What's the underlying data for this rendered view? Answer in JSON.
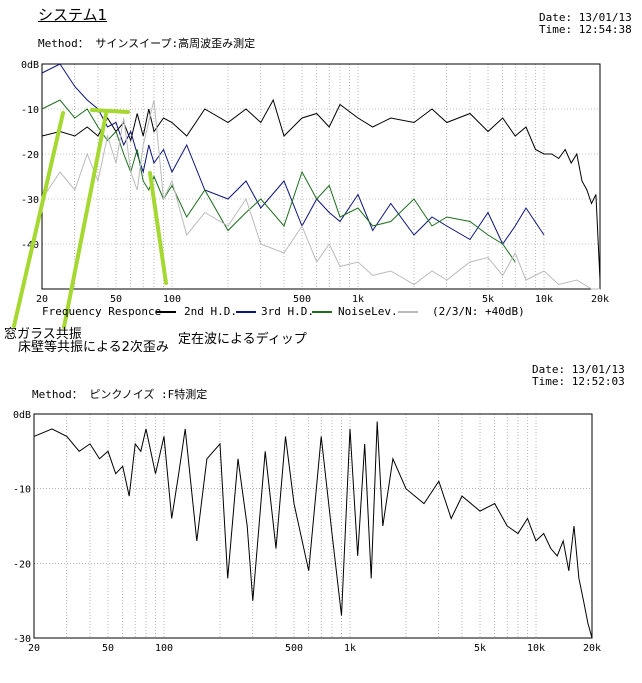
{
  "chart1": {
    "title": "システム1",
    "method": "Method： サインスイープ:高周波歪み測定",
    "date": "Date: 13/01/13",
    "time": "Time: 12:54:38",
    "legend": [
      {
        "label": "Frequency Responce",
        "color": "#000000"
      },
      {
        "label": "2nd H.D.",
        "color": "#0a1478"
      },
      {
        "label": "3rd H.D.",
        "color": "#1e6e1e"
      },
      {
        "label": "NoiseLev.",
        "color": "#bbbbbb"
      }
    ],
    "legend_note": "(2/3/N: +40dB)"
  },
  "annotations": {
    "a1": "窓ガラス共振",
    "a2": "床壁等共振による2次歪み",
    "a3": "定在波によるディップ",
    "color": "#a6d832"
  },
  "chart2": {
    "date": "Date: 13/01/13",
    "time": "Time: 12:52:03",
    "method": "Method： ピンクノイズ :F特測定"
  },
  "chart_data": [
    {
      "type": "line",
      "xscale": "log",
      "xlim": [
        20,
        20000
      ],
      "ylim": [
        -50,
        0
      ],
      "x_ticks": [
        "20",
        "50",
        "100",
        "500",
        "1k",
        "5k",
        "10k",
        "20k"
      ],
      "y_ticks": [
        "0dB",
        "-10",
        "-20",
        "-30",
        "-40"
      ],
      "grid": true,
      "series": [
        {
          "name": "Frequency Responce",
          "color": "#000000",
          "x": [
            20,
            25,
            30,
            35,
            40,
            45,
            50,
            55,
            60,
            65,
            70,
            75,
            80,
            90,
            100,
            120,
            150,
            200,
            250,
            300,
            350,
            400,
            500,
            600,
            700,
            800,
            1000,
            1200,
            1500,
            2000,
            2500,
            3000,
            4000,
            5000,
            6000,
            7000,
            8000,
            9000,
            10000,
            11000,
            12000,
            13000,
            14000,
            15000,
            16000,
            17000,
            18000,
            19000,
            20000
          ],
          "y": [
            -16,
            -15,
            -16,
            -14,
            -16,
            -12,
            -15,
            -13,
            -17,
            -11,
            -16,
            -10,
            -15,
            -12,
            -13,
            -16,
            -10,
            -13,
            -10,
            -13,
            -8,
            -16,
            -12,
            -11,
            -14,
            -9,
            -12,
            -14,
            -12,
            -13,
            -10,
            -13,
            -11,
            -15,
            -12,
            -16,
            -14,
            -19,
            -20,
            -20,
            -21,
            -19,
            -22,
            -20,
            -26,
            -28,
            -31,
            -29,
            -48
          ]
        },
        {
          "name": "2nd H.D.",
          "color": "#0a1478",
          "x": [
            20,
            25,
            30,
            35,
            40,
            45,
            50,
            55,
            60,
            65,
            70,
            75,
            80,
            90,
            100,
            120,
            150,
            200,
            250,
            300,
            400,
            500,
            600,
            700,
            800,
            1000,
            1200,
            1500,
            2000,
            2500,
            3000,
            4000,
            5000,
            6000,
            7000,
            8000,
            10000
          ],
          "y": [
            -2,
            0,
            -5,
            -8,
            -10,
            -14,
            -13,
            -18,
            -15,
            -20,
            -24,
            -18,
            -22,
            -19,
            -24,
            -18,
            -28,
            -30,
            -26,
            -32,
            -26,
            -36,
            -30,
            -33,
            -35,
            -29,
            -37,
            -31,
            -38,
            -34,
            -36,
            -39,
            -33,
            -40,
            -36,
            -32,
            -38
          ]
        },
        {
          "name": "3rd H.D.",
          "color": "#1e6e1e",
          "x": [
            20,
            25,
            30,
            35,
            40,
            45,
            50,
            55,
            60,
            65,
            70,
            75,
            80,
            90,
            100,
            120,
            150,
            200,
            250,
            300,
            400,
            500,
            600,
            700,
            800,
            1000,
            1200,
            1500,
            2000,
            2500,
            3000,
            4000,
            5000,
            6000,
            7000
          ],
          "y": [
            -10,
            -8,
            -12,
            -10,
            -14,
            -17,
            -15,
            -20,
            -24,
            -19,
            -26,
            -28,
            -25,
            -30,
            -27,
            -34,
            -28,
            -37,
            -33,
            -30,
            -36,
            -24,
            -30,
            -27,
            -34,
            -32,
            -36,
            -35,
            -30,
            -36,
            -34,
            -35,
            -38,
            -40,
            -44
          ]
        },
        {
          "name": "NoiseLev.",
          "color": "#bbbbbb",
          "x": [
            20,
            25,
            30,
            35,
            40,
            45,
            50,
            55,
            60,
            65,
            70,
            80,
            90,
            100,
            120,
            150,
            200,
            250,
            300,
            400,
            500,
            600,
            700,
            800,
            1000,
            1200,
            1500,
            2000,
            2500,
            3000,
            4000,
            5000,
            6000,
            7000,
            8000,
            10000,
            12000,
            15000,
            18000,
            20000
          ],
          "y": [
            -30,
            -24,
            -28,
            -20,
            -26,
            -16,
            -22,
            -12,
            -24,
            -28,
            -18,
            -8,
            -30,
            -26,
            -38,
            -33,
            -36,
            -30,
            -40,
            -42,
            -36,
            -44,
            -40,
            -45,
            -44,
            -47,
            -46,
            -49,
            -46,
            -48,
            -44,
            -43,
            -47,
            -42,
            -48,
            -46,
            -49,
            -48,
            -50,
            -50
          ]
        }
      ]
    },
    {
      "type": "line",
      "xscale": "log",
      "xlim": [
        20,
        20000
      ],
      "ylim": [
        -30,
        0
      ],
      "x_ticks": [
        "20",
        "50",
        "100",
        "500",
        "1k",
        "5k",
        "10k",
        "20k"
      ],
      "y_ticks": [
        "0dB",
        "-10",
        "-20",
        "-30"
      ],
      "grid": true,
      "series": [
        {
          "name": "",
          "color": "#000000",
          "x": [
            20,
            25,
            30,
            35,
            40,
            45,
            50,
            55,
            60,
            65,
            70,
            75,
            80,
            90,
            100,
            110,
            120,
            130,
            150,
            170,
            200,
            220,
            250,
            280,
            300,
            350,
            400,
            450,
            500,
            600,
            700,
            800,
            900,
            1000,
            1100,
            1200,
            1300,
            1400,
            1500,
            1700,
            2000,
            2500,
            3000,
            3500,
            4000,
            5000,
            6000,
            7000,
            8000,
            9000,
            10000,
            11000,
            12000,
            13000,
            14000,
            15000,
            16000,
            17000,
            18000,
            19000,
            20000
          ],
          "y": [
            -3,
            -2,
            -3,
            -5,
            -4,
            -6,
            -5,
            -8,
            -7,
            -11,
            -4,
            -5,
            -2,
            -8,
            -3,
            -14,
            -8,
            -2,
            -17,
            -6,
            -4,
            -22,
            -6,
            -15,
            -25,
            -5,
            -18,
            -3,
            -12,
            -21,
            -3,
            -16,
            -27,
            -2,
            -19,
            -4,
            -22,
            -1,
            -15,
            -6,
            -10,
            -12,
            -9,
            -14,
            -11,
            -13,
            -12,
            -15,
            -16,
            -14,
            -17,
            -16,
            -18,
            -19,
            -17,
            -21,
            -15,
            -22,
            -25,
            -28,
            -30
          ]
        }
      ]
    }
  ]
}
